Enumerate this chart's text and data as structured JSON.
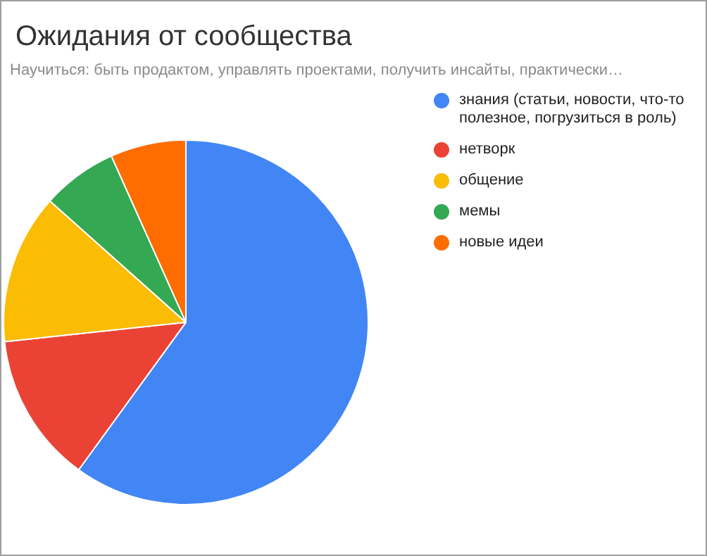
{
  "chart_data": {
    "type": "pie",
    "title": "Ожидания от сообщества",
    "subtitle": "Научиться: быть продактом, управлять проектами, получить инсайты, практически…",
    "categories": [
      "знания (статьи, новости, что-то полезное, погрузиться в роль)",
      "нетворк",
      "общение",
      "мемы",
      "новые идеи"
    ],
    "values": [
      60,
      13.3,
      13.3,
      6.7,
      6.7
    ],
    "colors": [
      "#4285f4",
      "#ea4335",
      "#fbbc04",
      "#34a853",
      "#ff6d01"
    ],
    "legend": "right"
  }
}
